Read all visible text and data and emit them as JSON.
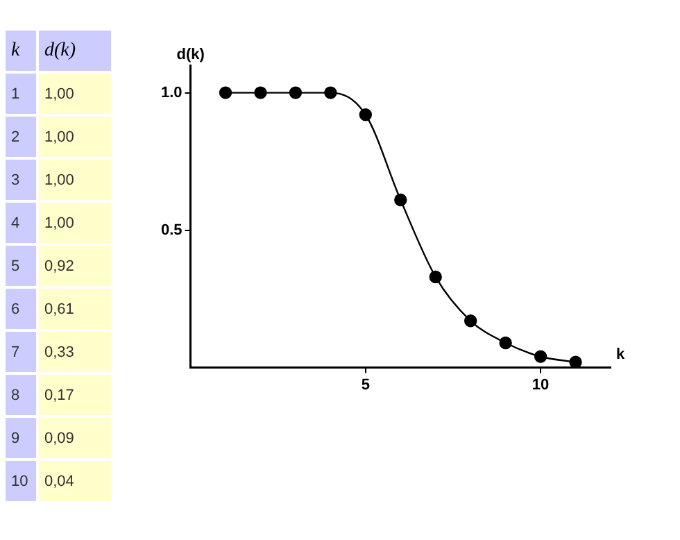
{
  "chart_data": {
    "type": "line",
    "xlabel": "k",
    "ylabel": "d(k)",
    "x": [
      1,
      2,
      3,
      4,
      5,
      6,
      7,
      8,
      9,
      10,
      11
    ],
    "series": [
      {
        "color": "#000000",
        "values": [
          1.0,
          1.0,
          1.0,
          1.0,
          0.92,
          0.61,
          0.33,
          0.17,
          0.09,
          0.04,
          0.02
        ]
      }
    ],
    "annotations": [
      "1",
      "1,00",
      "2",
      "1,00",
      "3",
      "1,00",
      "4",
      "1,00",
      "5",
      "0,92",
      "6",
      "0,61",
      "7",
      "0,33",
      "8",
      "0,17",
      "9",
      "0,09",
      "10",
      "0,04"
    ],
    "xlim": [
      0,
      12
    ],
    "xticks": [
      5,
      10
    ],
    "ylim": [
      0,
      1.1
    ],
    "yticks": [
      {
        "value": 0.5,
        "label": "0.5"
      },
      {
        "value": 1,
        "label": "1.0"
      }
    ],
    "grid": false,
    "legend": false,
    "marker": "circle",
    "line_style": "solid"
  }
}
